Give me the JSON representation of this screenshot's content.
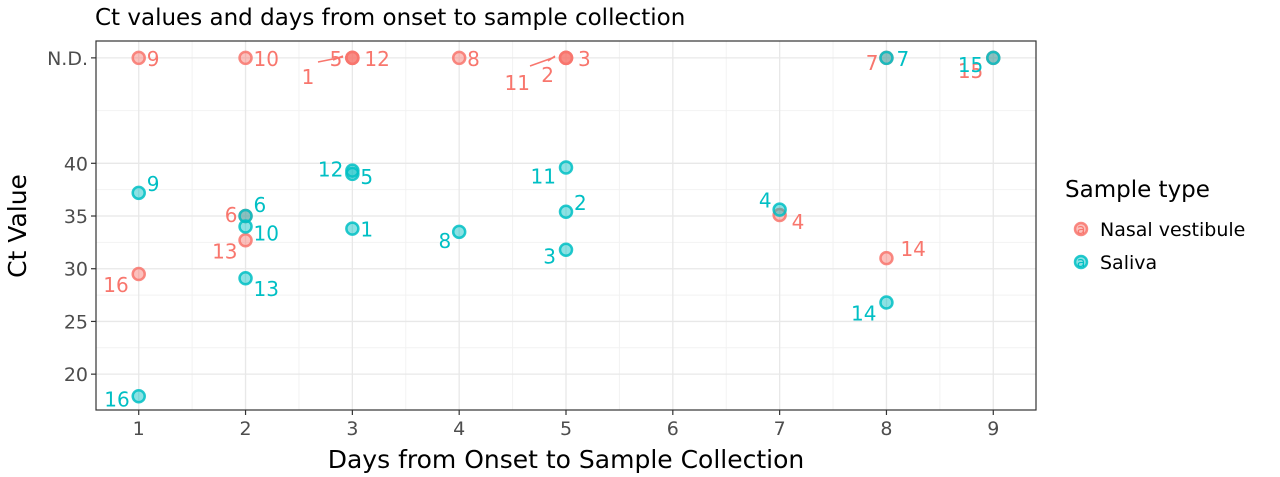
{
  "chart_data": {
    "type": "scatter",
    "title": "Ct values and days from onset to sample collection",
    "xlabel": "Days from Onset to Sample Collection",
    "ylabel": "Ct Value",
    "xlim": [
      0.6,
      9.4
    ],
    "ylim": [
      16.6,
      51.6
    ],
    "x_ticks": [
      1,
      2,
      3,
      4,
      5,
      6,
      7,
      8,
      9
    ],
    "x_tick_labels": [
      "1",
      "2",
      "3",
      "4",
      "5",
      "6",
      "7",
      "8",
      "9"
    ],
    "y_ticks": [
      20,
      25,
      30,
      35,
      40,
      50
    ],
    "y_tick_labels": [
      "20",
      "25",
      "30",
      "35",
      "40",
      "N.D."
    ],
    "grid": true,
    "legend": {
      "title": "Sample type",
      "position": "right",
      "glyph": "a",
      "entries": [
        {
          "name": "Nasal vestibule",
          "color": "#F8766D"
        },
        {
          "name": "Saliva",
          "color": "#00BFC4"
        }
      ]
    },
    "series": [
      {
        "name": "Nasal vestibule",
        "color": "#F8766D",
        "points": [
          {
            "x": 1,
            "y": 50,
            "label": "9"
          },
          {
            "x": 2,
            "y": 50,
            "label": "10"
          },
          {
            "x": 3,
            "y": 50,
            "label": "12"
          },
          {
            "x": 3,
            "y": 50,
            "label": "5"
          },
          {
            "x": 3,
            "y": 50,
            "label": "1"
          },
          {
            "x": 4,
            "y": 50,
            "label": "8"
          },
          {
            "x": 5,
            "y": 50,
            "label": "3"
          },
          {
            "x": 5,
            "y": 50,
            "label": "2"
          },
          {
            "x": 5,
            "y": 50,
            "label": "11"
          },
          {
            "x": 8,
            "y": 50,
            "label": "7"
          },
          {
            "x": 9,
            "y": 50,
            "label": "15"
          },
          {
            "x": 1,
            "y": 29.5,
            "label": "16"
          },
          {
            "x": 2,
            "y": 35,
            "label": "6"
          },
          {
            "x": 2,
            "y": 32.7,
            "label": "13"
          },
          {
            "x": 7,
            "y": 35.1,
            "label": "4"
          },
          {
            "x": 8,
            "y": 31,
            "label": "14"
          }
        ]
      },
      {
        "name": "Saliva",
        "color": "#00BFC4",
        "points": [
          {
            "x": 1,
            "y": 37.2,
            "label": "9"
          },
          {
            "x": 1,
            "y": 17.9,
            "label": "16"
          },
          {
            "x": 2,
            "y": 35,
            "label": "6"
          },
          {
            "x": 2,
            "y": 34,
            "label": "10"
          },
          {
            "x": 2,
            "y": 29.1,
            "label": "13"
          },
          {
            "x": 3,
            "y": 39.3,
            "label": "12"
          },
          {
            "x": 3,
            "y": 39,
            "label": "5"
          },
          {
            "x": 3,
            "y": 33.8,
            "label": "1"
          },
          {
            "x": 4,
            "y": 33.5,
            "label": "8"
          },
          {
            "x": 5,
            "y": 39.6,
            "label": "11"
          },
          {
            "x": 5,
            "y": 35.4,
            "label": "2"
          },
          {
            "x": 5,
            "y": 31.8,
            "label": "3"
          },
          {
            "x": 7,
            "y": 35.6,
            "label": "4"
          },
          {
            "x": 8,
            "y": 50,
            "label": "7"
          },
          {
            "x": 8,
            "y": 26.8,
            "label": "14"
          },
          {
            "x": 9,
            "y": 50,
            "label": "15"
          }
        ]
      }
    ]
  }
}
